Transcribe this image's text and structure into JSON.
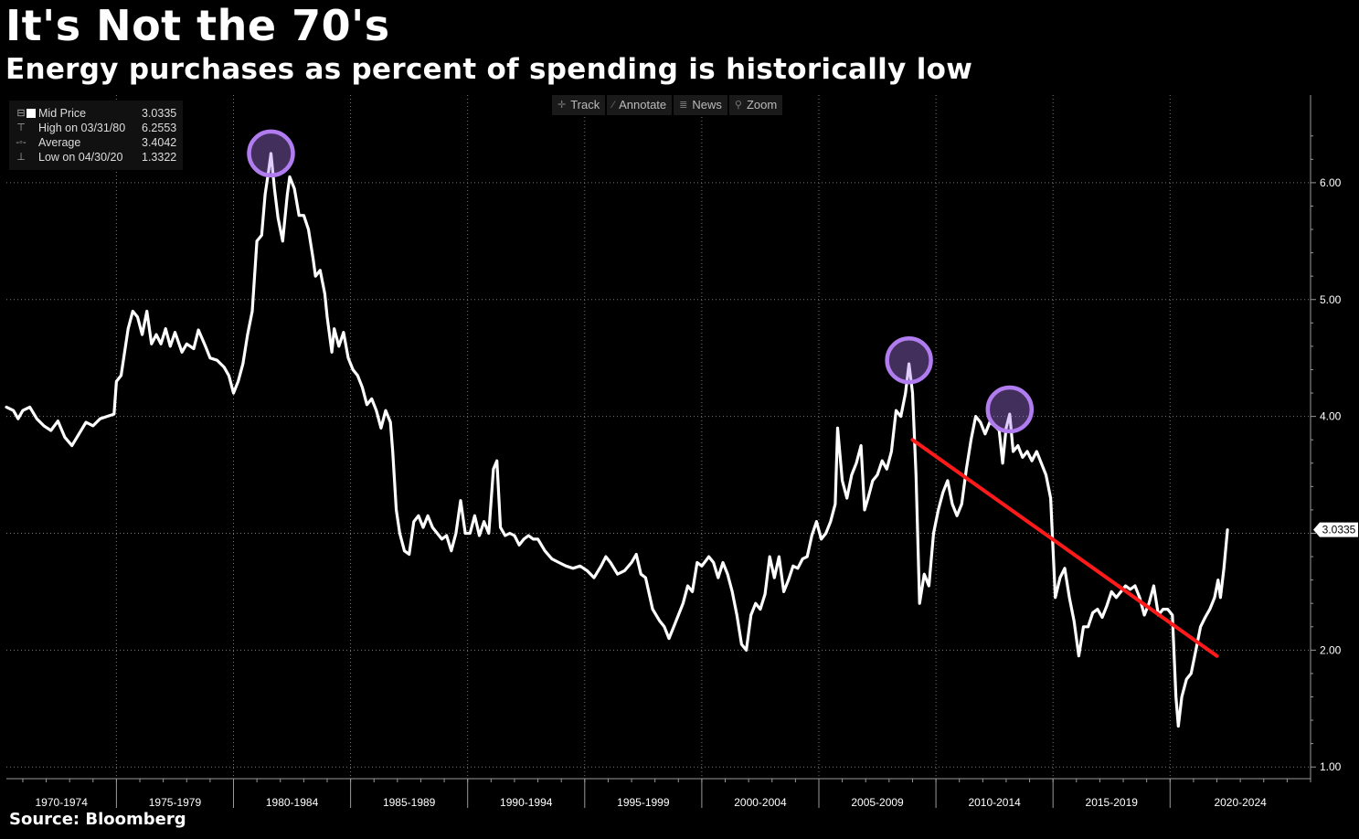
{
  "chart_data": {
    "type": "line",
    "title": "It's Not the 70's",
    "subtitle": "Energy purchases as percent of spending is historically low",
    "source": "Source: Bloomberg",
    "xlabel": "",
    "ylabel": "",
    "x_range": [
      1969.3,
      2025.0
    ],
    "ylim": [
      0.9,
      6.75
    ],
    "y_ticks": [
      {
        "value": 1.0,
        "label": "1.00"
      },
      {
        "value": 2.0,
        "label": "2.00"
      },
      {
        "value": 3.0,
        "label": "3.00"
      },
      {
        "value": 4.0,
        "label": "4.00"
      },
      {
        "value": 5.0,
        "label": "5.00"
      },
      {
        "value": 6.0,
        "label": "6.00"
      }
    ],
    "x_categories": [
      {
        "label": "1970-1974",
        "start": 1969.3,
        "end": 1974.0
      },
      {
        "label": "1975-1979",
        "start": 1974.0,
        "end": 1979.0
      },
      {
        "label": "1980-1984",
        "start": 1979.0,
        "end": 1984.0
      },
      {
        "label": "1985-1989",
        "start": 1984.0,
        "end": 1989.0
      },
      {
        "label": "1990-1994",
        "start": 1989.0,
        "end": 1994.0
      },
      {
        "label": "1995-1999",
        "start": 1994.0,
        "end": 1999.0
      },
      {
        "label": "2000-2004",
        "start": 1999.0,
        "end": 2004.0
      },
      {
        "label": "2005-2009",
        "start": 2004.0,
        "end": 2009.0
      },
      {
        "label": "2010-2014",
        "start": 2009.0,
        "end": 2014.0
      },
      {
        "label": "2015-2019",
        "start": 2014.0,
        "end": 2019.0
      },
      {
        "label": "2020-2024",
        "start": 2019.0,
        "end": 2025.0
      }
    ],
    "series": [
      {
        "name": "Mid Price",
        "color": "#ffffff",
        "last_value_label": "3.0335",
        "points": [
          [
            1969.3,
            4.08
          ],
          [
            1969.6,
            4.05
          ],
          [
            1969.8,
            3.98
          ],
          [
            1970.0,
            4.05
          ],
          [
            1970.3,
            4.08
          ],
          [
            1970.6,
            3.98
          ],
          [
            1970.9,
            3.92
          ],
          [
            1971.2,
            3.88
          ],
          [
            1971.5,
            3.96
          ],
          [
            1971.8,
            3.82
          ],
          [
            1972.1,
            3.75
          ],
          [
            1972.4,
            3.85
          ],
          [
            1972.7,
            3.95
          ],
          [
            1973.0,
            3.92
          ],
          [
            1973.3,
            3.98
          ],
          [
            1973.6,
            4.0
          ],
          [
            1973.9,
            4.02
          ],
          [
            1974.0,
            4.3
          ],
          [
            1974.2,
            4.35
          ],
          [
            1974.5,
            4.75
          ],
          [
            1974.7,
            4.9
          ],
          [
            1974.9,
            4.85
          ],
          [
            1975.1,
            4.7
          ],
          [
            1975.3,
            4.9
          ],
          [
            1975.5,
            4.62
          ],
          [
            1975.7,
            4.7
          ],
          [
            1975.9,
            4.62
          ],
          [
            1976.1,
            4.75
          ],
          [
            1976.3,
            4.6
          ],
          [
            1976.5,
            4.72
          ],
          [
            1976.8,
            4.55
          ],
          [
            1977.0,
            4.62
          ],
          [
            1977.3,
            4.58
          ],
          [
            1977.5,
            4.74
          ],
          [
            1977.8,
            4.6
          ],
          [
            1978.0,
            4.5
          ],
          [
            1978.3,
            4.48
          ],
          [
            1978.6,
            4.42
          ],
          [
            1978.8,
            4.35
          ],
          [
            1979.0,
            4.2
          ],
          [
            1979.2,
            4.3
          ],
          [
            1979.4,
            4.45
          ],
          [
            1979.6,
            4.7
          ],
          [
            1979.8,
            4.9
          ],
          [
            1980.0,
            5.5
          ],
          [
            1980.2,
            5.55
          ],
          [
            1980.35,
            5.9
          ],
          [
            1980.5,
            6.1
          ],
          [
            1980.6,
            6.25
          ],
          [
            1980.75,
            5.95
          ],
          [
            1980.9,
            5.7
          ],
          [
            1981.1,
            5.5
          ],
          [
            1981.3,
            5.9
          ],
          [
            1981.4,
            6.05
          ],
          [
            1981.6,
            5.95
          ],
          [
            1981.8,
            5.72
          ],
          [
            1982.0,
            5.72
          ],
          [
            1982.2,
            5.6
          ],
          [
            1982.4,
            5.35
          ],
          [
            1982.5,
            5.2
          ],
          [
            1982.7,
            5.25
          ],
          [
            1982.9,
            5.05
          ],
          [
            1983.0,
            4.85
          ],
          [
            1983.2,
            4.55
          ],
          [
            1983.3,
            4.75
          ],
          [
            1983.5,
            4.6
          ],
          [
            1983.7,
            4.72
          ],
          [
            1983.9,
            4.5
          ],
          [
            1984.1,
            4.4
          ],
          [
            1984.3,
            4.35
          ],
          [
            1984.5,
            4.25
          ],
          [
            1984.7,
            4.1
          ],
          [
            1984.9,
            4.15
          ],
          [
            1985.1,
            4.05
          ],
          [
            1985.3,
            3.9
          ],
          [
            1985.5,
            4.05
          ],
          [
            1985.7,
            3.95
          ],
          [
            1985.8,
            3.7
          ],
          [
            1985.95,
            3.2
          ],
          [
            1986.1,
            3.0
          ],
          [
            1986.3,
            2.85
          ],
          [
            1986.5,
            2.82
          ],
          [
            1986.7,
            3.1
          ],
          [
            1986.9,
            3.15
          ],
          [
            1987.1,
            3.05
          ],
          [
            1987.3,
            3.15
          ],
          [
            1987.5,
            3.05
          ],
          [
            1987.7,
            3.0
          ],
          [
            1987.9,
            2.95
          ],
          [
            1988.1,
            2.98
          ],
          [
            1988.3,
            2.85
          ],
          [
            1988.5,
            3.0
          ],
          [
            1988.7,
            3.28
          ],
          [
            1988.9,
            3.0
          ],
          [
            1989.1,
            3.0
          ],
          [
            1989.3,
            3.15
          ],
          [
            1989.5,
            2.98
          ],
          [
            1989.7,
            3.1
          ],
          [
            1989.9,
            3.0
          ],
          [
            1990.1,
            3.55
          ],
          [
            1990.25,
            3.62
          ],
          [
            1990.4,
            3.05
          ],
          [
            1990.6,
            2.98
          ],
          [
            1990.8,
            3.0
          ],
          [
            1991.0,
            2.98
          ],
          [
            1991.2,
            2.9
          ],
          [
            1991.4,
            2.95
          ],
          [
            1991.6,
            2.98
          ],
          [
            1991.8,
            2.95
          ],
          [
            1992.0,
            2.95
          ],
          [
            1992.3,
            2.85
          ],
          [
            1992.6,
            2.78
          ],
          [
            1992.9,
            2.75
          ],
          [
            1993.2,
            2.72
          ],
          [
            1993.5,
            2.7
          ],
          [
            1993.8,
            2.72
          ],
          [
            1994.1,
            2.68
          ],
          [
            1994.4,
            2.62
          ],
          [
            1994.7,
            2.72
          ],
          [
            1994.9,
            2.8
          ],
          [
            1995.1,
            2.75
          ],
          [
            1995.4,
            2.65
          ],
          [
            1995.7,
            2.68
          ],
          [
            1996.0,
            2.75
          ],
          [
            1996.2,
            2.82
          ],
          [
            1996.4,
            2.65
          ],
          [
            1996.6,
            2.62
          ],
          [
            1996.9,
            2.35
          ],
          [
            1997.2,
            2.25
          ],
          [
            1997.4,
            2.2
          ],
          [
            1997.6,
            2.1
          ],
          [
            1997.8,
            2.2
          ],
          [
            1998.0,
            2.3
          ],
          [
            1998.2,
            2.4
          ],
          [
            1998.4,
            2.55
          ],
          [
            1998.6,
            2.5
          ],
          [
            1998.8,
            2.75
          ],
          [
            1999.0,
            2.72
          ],
          [
            1999.3,
            2.8
          ],
          [
            1999.5,
            2.75
          ],
          [
            1999.7,
            2.62
          ],
          [
            1999.9,
            2.75
          ],
          [
            2000.1,
            2.65
          ],
          [
            2000.3,
            2.5
          ],
          [
            2000.5,
            2.3
          ],
          [
            2000.7,
            2.05
          ],
          [
            2000.9,
            2.0
          ],
          [
            2001.1,
            2.3
          ],
          [
            2001.3,
            2.4
          ],
          [
            2001.5,
            2.35
          ],
          [
            2001.7,
            2.48
          ],
          [
            2001.9,
            2.8
          ],
          [
            2002.1,
            2.62
          ],
          [
            2002.3,
            2.8
          ],
          [
            2002.5,
            2.5
          ],
          [
            2002.7,
            2.6
          ],
          [
            2002.9,
            2.72
          ],
          [
            2003.1,
            2.7
          ],
          [
            2003.3,
            2.78
          ],
          [
            2003.5,
            2.8
          ],
          [
            2003.7,
            2.98
          ],
          [
            2003.9,
            3.1
          ],
          [
            2004.1,
            2.95
          ],
          [
            2004.3,
            3.0
          ],
          [
            2004.5,
            3.1
          ],
          [
            2004.7,
            3.25
          ],
          [
            2004.8,
            3.9
          ],
          [
            2005.0,
            3.45
          ],
          [
            2005.2,
            3.3
          ],
          [
            2005.4,
            3.5
          ],
          [
            2005.6,
            3.6
          ],
          [
            2005.8,
            3.75
          ],
          [
            2005.95,
            3.2
          ],
          [
            2006.1,
            3.3
          ],
          [
            2006.3,
            3.45
          ],
          [
            2006.5,
            3.5
          ],
          [
            2006.7,
            3.62
          ],
          [
            2006.9,
            3.55
          ],
          [
            2007.1,
            3.7
          ],
          [
            2007.3,
            4.05
          ],
          [
            2007.5,
            4.0
          ],
          [
            2007.7,
            4.2
          ],
          [
            2007.85,
            4.45
          ],
          [
            2008.0,
            4.2
          ],
          [
            2008.15,
            3.5
          ],
          [
            2008.3,
            2.4
          ],
          [
            2008.5,
            2.65
          ],
          [
            2008.7,
            2.55
          ],
          [
            2008.9,
            3.0
          ],
          [
            2009.1,
            3.2
          ],
          [
            2009.3,
            3.35
          ],
          [
            2009.5,
            3.45
          ],
          [
            2009.7,
            3.25
          ],
          [
            2009.9,
            3.15
          ],
          [
            2010.1,
            3.25
          ],
          [
            2010.3,
            3.55
          ],
          [
            2010.5,
            3.8
          ],
          [
            2010.7,
            4.0
          ],
          [
            2010.9,
            3.95
          ],
          [
            2011.1,
            3.85
          ],
          [
            2011.3,
            3.95
          ],
          [
            2011.5,
            3.92
          ],
          [
            2011.7,
            3.88
          ],
          [
            2011.85,
            3.6
          ],
          [
            2012.0,
            3.9
          ],
          [
            2012.15,
            4.02
          ],
          [
            2012.3,
            3.7
          ],
          [
            2012.5,
            3.75
          ],
          [
            2012.7,
            3.65
          ],
          [
            2012.9,
            3.7
          ],
          [
            2013.1,
            3.62
          ],
          [
            2013.3,
            3.7
          ],
          [
            2013.5,
            3.6
          ],
          [
            2013.7,
            3.5
          ],
          [
            2013.9,
            3.3
          ],
          [
            2014.1,
            2.45
          ],
          [
            2014.3,
            2.62
          ],
          [
            2014.5,
            2.7
          ],
          [
            2014.7,
            2.45
          ],
          [
            2014.9,
            2.25
          ],
          [
            2015.1,
            1.95
          ],
          [
            2015.3,
            2.2
          ],
          [
            2015.5,
            2.2
          ],
          [
            2015.7,
            2.32
          ],
          [
            2015.9,
            2.35
          ],
          [
            2016.1,
            2.28
          ],
          [
            2016.3,
            2.38
          ],
          [
            2016.5,
            2.5
          ],
          [
            2016.7,
            2.45
          ],
          [
            2016.9,
            2.5
          ],
          [
            2017.1,
            2.55
          ],
          [
            2017.3,
            2.52
          ],
          [
            2017.5,
            2.55
          ],
          [
            2017.7,
            2.45
          ],
          [
            2017.9,
            2.3
          ],
          [
            2018.1,
            2.4
          ],
          [
            2018.3,
            2.55
          ],
          [
            2018.5,
            2.3
          ],
          [
            2018.7,
            2.35
          ],
          [
            2018.9,
            2.35
          ],
          [
            2019.1,
            2.3
          ],
          [
            2019.25,
            1.6
          ],
          [
            2019.35,
            1.35
          ],
          [
            2019.5,
            1.6
          ],
          [
            2019.7,
            1.75
          ],
          [
            2019.9,
            1.8
          ],
          [
            2020.1,
            2.0
          ],
          [
            2020.3,
            2.2
          ],
          [
            2020.5,
            2.28
          ],
          [
            2020.7,
            2.35
          ],
          [
            2020.9,
            2.45
          ],
          [
            2021.05,
            2.6
          ],
          [
            2021.15,
            2.45
          ],
          [
            2021.3,
            2.7
          ],
          [
            2021.45,
            3.03
          ]
        ]
      }
    ],
    "trendline": {
      "color": "#ff1a1a",
      "from": [
        2008.0,
        3.8
      ],
      "to": [
        2021.0,
        1.95
      ]
    },
    "highlights": [
      {
        "x": 1980.6,
        "y": 6.25,
        "color": "#b07cf0"
      },
      {
        "x": 2007.85,
        "y": 4.48,
        "color": "#b07cf0"
      },
      {
        "x": 2012.15,
        "y": 4.06,
        "color": "#b07cf0"
      }
    ]
  },
  "legend": {
    "rows": [
      {
        "marker": "swatch",
        "label": "Mid Price",
        "value": "3.0335"
      },
      {
        "marker": "⊤",
        "label": "High on 03/31/80",
        "value": "6.2553"
      },
      {
        "marker": "-◦-",
        "label": "Average",
        "value": "3.4042"
      },
      {
        "marker": "⊥",
        "label": "Low on 04/30/20",
        "value": "1.3322"
      }
    ]
  },
  "toolbar": {
    "track": "Track",
    "annotate": "Annotate",
    "news": "News",
    "zoom": "Zoom"
  }
}
